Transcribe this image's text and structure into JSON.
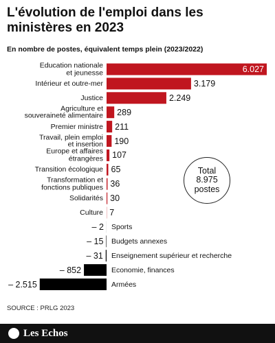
{
  "chart_data": {
    "type": "bar",
    "orientation": "horizontal",
    "title": "L'évolution de l'emploi dans les ministères en 2023",
    "subtitle": "En nombre de postes, équivalent temps plein (2023/2022)",
    "categories": [
      "Education nationale\net jeunesse",
      "Intérieur et outre-mer",
      "Justice",
      "Agriculture et\nsouveraineté alimentaire",
      "Premier ministre",
      "Travail, plein emploi\net insertion",
      "Europe et affaires\nétrangères",
      "Transition écologique",
      "Transformation et\nfonctions publiques",
      "Solidarités",
      "Culture",
      "Sports",
      "Budgets annexes",
      "Enseignement supérieur et recherche",
      "Economie, finances",
      "Armées"
    ],
    "values": [
      6027,
      3179,
      2249,
      289,
      211,
      190,
      107,
      65,
      36,
      30,
      7,
      -2,
      -15,
      -31,
      -852,
      -2515
    ],
    "value_labels": [
      "6.027",
      "3.179",
      "2.249",
      "289",
      "211",
      "190",
      "107",
      "65",
      "36",
      "30",
      "7",
      "– 2",
      "– 15",
      "– 31",
      "– 852",
      "– 2.515"
    ],
    "color": "#c0161f",
    "negative_color": "#000000",
    "annotation": "Total\n8.975\npostes",
    "source": "SOURCE : PRLG 2023"
  },
  "brand": "Les Echos"
}
